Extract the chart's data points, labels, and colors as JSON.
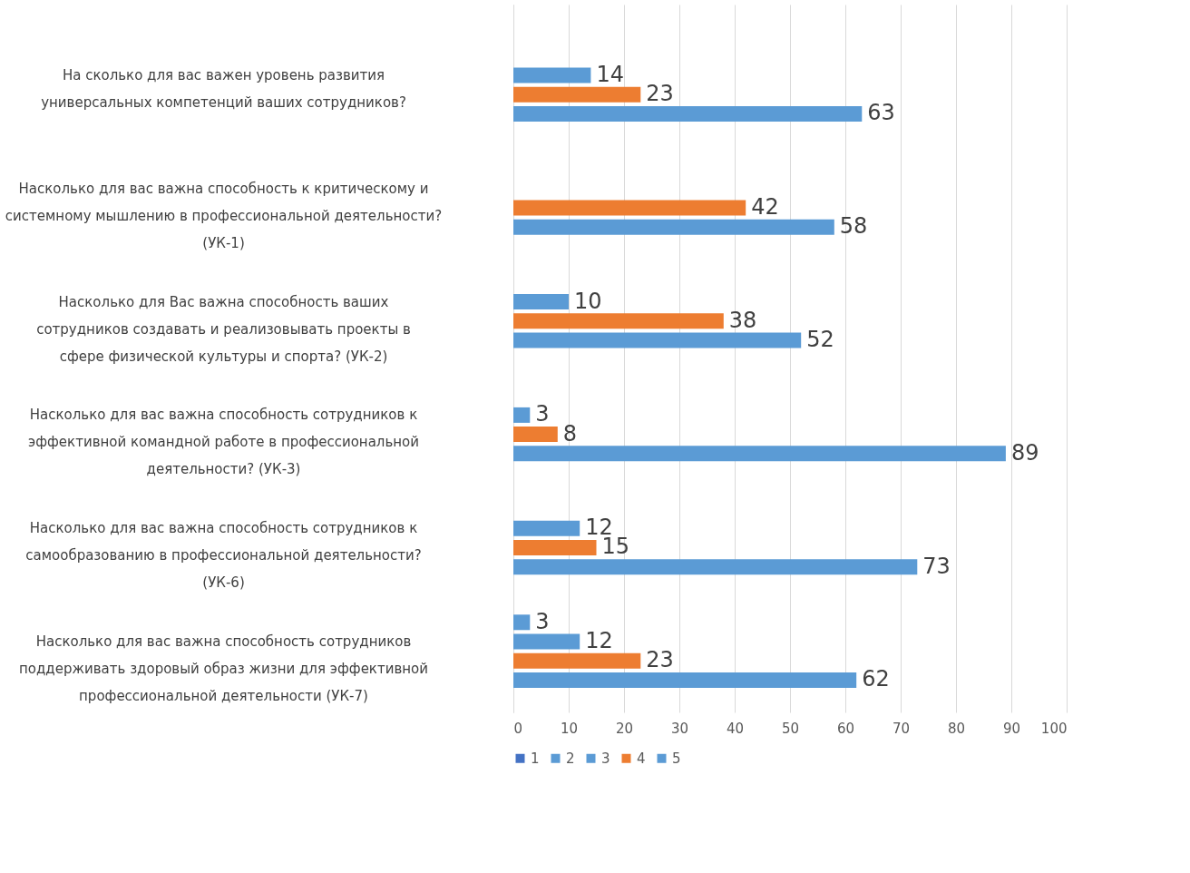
{
  "chart_data": {
    "type": "bar",
    "orientation": "horizontal",
    "categories": [
      "На сколько для вас важен уровень развития универсальных компетенций ваших сотрудников?",
      "Насколько для вас важна способность к критическому и системному мышлению в профессиональной деятельности? (УК-1)",
      "Насколько для Вас важна способность ваших сотрудников создавать и реализовывать проекты в сфере физической культуры и спорта? (УК-2)",
      "Насколько для вас важна способность сотрудников к эффективной командной работе в профессиональной деятельности? (УК-3)",
      "Насколько для вас важна способность сотрудников к самообразованию в профессиональной деятельности? (УК-6)",
      "Насколько для вас важна способность сотрудников поддерживать здоровый образ жизни для эффективной профессиональной деятельности (УК-7)"
    ],
    "series": [
      {
        "name": "1",
        "color": "#4472c4",
        "values": [
          null,
          null,
          null,
          null,
          null,
          null
        ]
      },
      {
        "name": "2",
        "color": "#5b9bd5",
        "values": [
          null,
          null,
          null,
          null,
          null,
          3
        ]
      },
      {
        "name": "3",
        "color": "#5b9bd5",
        "values": [
          14,
          null,
          10,
          3,
          12,
          12
        ]
      },
      {
        "name": "4",
        "color": "#ed7d31",
        "values": [
          23,
          42,
          38,
          8,
          15,
          23
        ]
      },
      {
        "name": "5",
        "color": "#5b9bd5",
        "values": [
          63,
          58,
          52,
          89,
          73,
          62
        ]
      }
    ],
    "xlim": [
      0,
      100
    ],
    "xticks": [
      0,
      10,
      20,
      30,
      40,
      50,
      60,
      70,
      80,
      90,
      100
    ],
    "grid": "x",
    "legend": "bottom",
    "data_labels": true
  }
}
